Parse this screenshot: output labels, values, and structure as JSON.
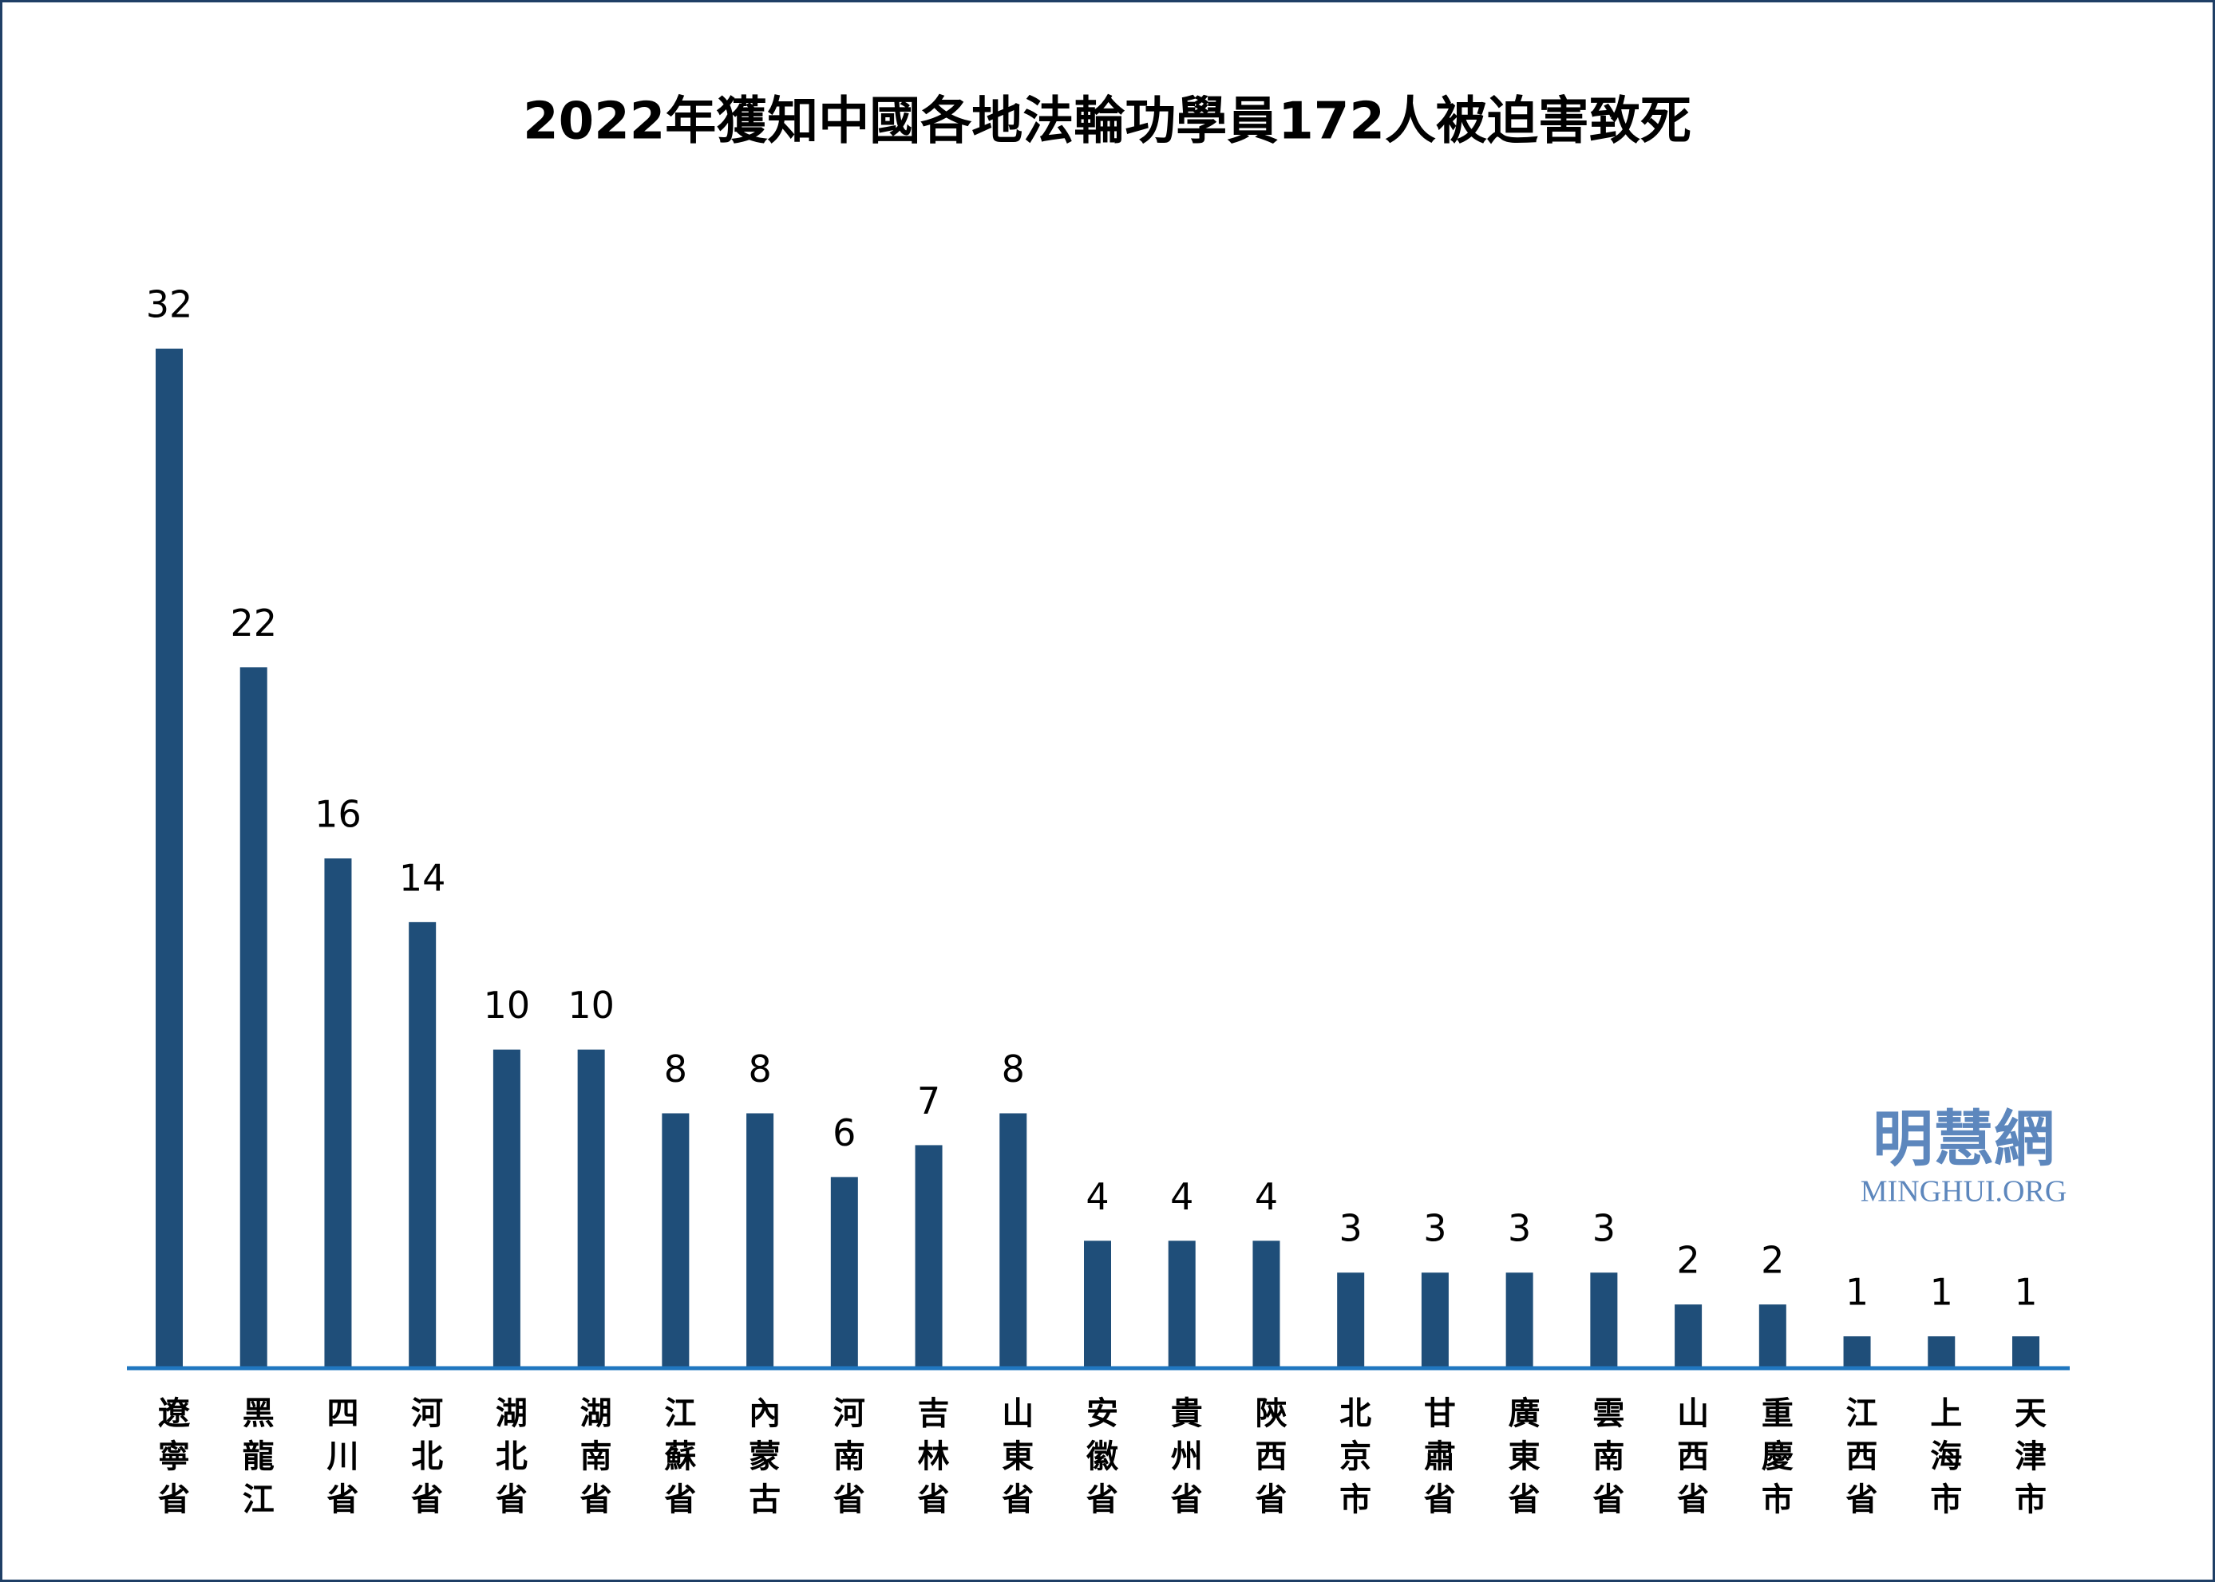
{
  "chart_data": {
    "type": "bar",
    "title": "2022年獲知中國各地法輪功學員172人被迫害致死",
    "categories": [
      "遼寧省",
      "黑龍江",
      "四川省",
      "河北省",
      "湖北省",
      "湖南省",
      "江蘇省",
      "內蒙古",
      "河南省",
      "吉林省",
      "山東省",
      "安徽省",
      "貴州省",
      "陝西省",
      "北京市",
      "甘肅省",
      "廣東省",
      "雲南省",
      "山西省",
      "重慶市",
      "江西省",
      "上海市",
      "天津市"
    ],
    "values": [
      32,
      22,
      16,
      14,
      10,
      10,
      8,
      8,
      6,
      7,
      8,
      4,
      4,
      4,
      3,
      3,
      3,
      3,
      2,
      2,
      1,
      1,
      1
    ],
    "color": "#1f4e79",
    "ylim": [
      0,
      32
    ],
    "watermark": {
      "name": "明慧網",
      "url": "MINGHUI.ORG"
    }
  }
}
